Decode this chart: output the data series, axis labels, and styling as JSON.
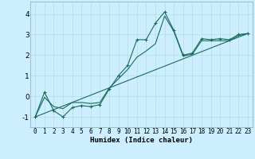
{
  "xlabel": "Humidex (Indice chaleur)",
  "background_color": "#cceeff",
  "line_color": "#1a6b5a",
  "xlim": [
    -0.5,
    23.5
  ],
  "ylim": [
    -1.5,
    4.6
  ],
  "yticks": [
    -1,
    0,
    1,
    2,
    3,
    4
  ],
  "xticks": [
    0,
    1,
    2,
    3,
    4,
    5,
    6,
    7,
    8,
    9,
    10,
    11,
    12,
    13,
    14,
    15,
    16,
    17,
    18,
    19,
    20,
    21,
    22,
    23
  ],
  "series_wiggly": {
    "x": [
      0,
      1,
      2,
      3,
      4,
      5,
      6,
      7,
      8,
      9,
      10,
      11,
      12,
      13,
      14,
      15,
      16,
      17,
      18,
      19,
      20,
      21,
      22,
      23
    ],
    "y": [
      -1.0,
      0.2,
      -0.7,
      -1.0,
      -0.55,
      -0.45,
      -0.5,
      -0.4,
      0.35,
      1.0,
      1.5,
      2.75,
      2.75,
      3.55,
      4.1,
      3.2,
      2.0,
      2.1,
      2.8,
      2.75,
      2.8,
      2.75,
      3.0,
      3.05
    ]
  },
  "series_smooth": {
    "x": [
      0,
      1,
      2,
      3,
      4,
      5,
      6,
      7,
      8,
      9,
      10,
      11,
      12,
      13,
      14,
      15,
      16,
      17,
      18,
      19,
      20,
      21,
      22,
      23
    ],
    "y": [
      -1.0,
      -0.05,
      -0.5,
      -0.6,
      -0.3,
      -0.3,
      -0.35,
      -0.3,
      0.4,
      0.85,
      1.3,
      1.9,
      2.2,
      2.55,
      3.9,
      3.15,
      1.95,
      2.05,
      2.7,
      2.7,
      2.7,
      2.7,
      2.95,
      3.05
    ]
  },
  "series_linear": {
    "x": [
      0,
      23
    ],
    "y": [
      -1.0,
      3.05
    ]
  },
  "series_linear2": {
    "x": [
      0,
      23
    ],
    "y": [
      -1.0,
      3.05
    ]
  }
}
